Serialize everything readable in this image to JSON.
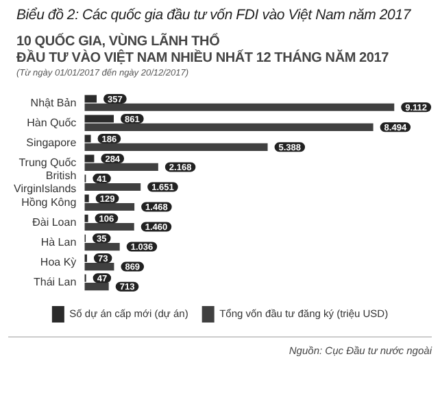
{
  "chart_data": {
    "type": "bar",
    "orientation": "horizontal",
    "title": "Biểu đồ 2: Các quốc gia đầu tư vốn FDI vào Việt Nam năm 2017",
    "subtitle": "10 QUỐC GIA, VÙNG LÃNH THỔ\nĐẦU TƯ VÀO VIỆT NAM NHIỀU NHẤT 12 THÁNG NĂM 2017",
    "categories": [
      "Nhật Bản",
      "Hàn Quốc",
      "Singapore",
      "Trung Quốc",
      "British VirginIslands",
      "Hồng Kông",
      "Đài Loan",
      "Hà Lan",
      "Hoa Kỳ",
      "Thái Lan"
    ],
    "series": [
      {
        "name": "Số dự án cấp mới (dự án)",
        "color": "#2b2b2b",
        "values": [
          357,
          861,
          186,
          284,
          41,
          129,
          106,
          35,
          73,
          47
        ],
        "value_labels": [
          "357",
          "861",
          "186",
          "284",
          "41",
          "129",
          "106",
          "35",
          "73",
          "47"
        ]
      },
      {
        "name": "Tổng vốn đầu tư đăng ký (triệu USD)",
        "color": "#404040",
        "values": [
          9112,
          8494,
          5388,
          2168,
          1651,
          1468,
          1460,
          1036,
          869,
          713
        ],
        "value_labels": [
          "9.112",
          "8.494",
          "5.388",
          "2.168",
          "1.651",
          "1.468",
          "1.460",
          "1.036",
          "869",
          "713"
        ]
      }
    ],
    "legend": "bottom",
    "grid": false,
    "annotations": [
      "(Từ ngày 01/01/2017 đến ngày 20/12/2017)",
      "Nguồn: Cục Đầu tư nước ngoài"
    ]
  }
}
